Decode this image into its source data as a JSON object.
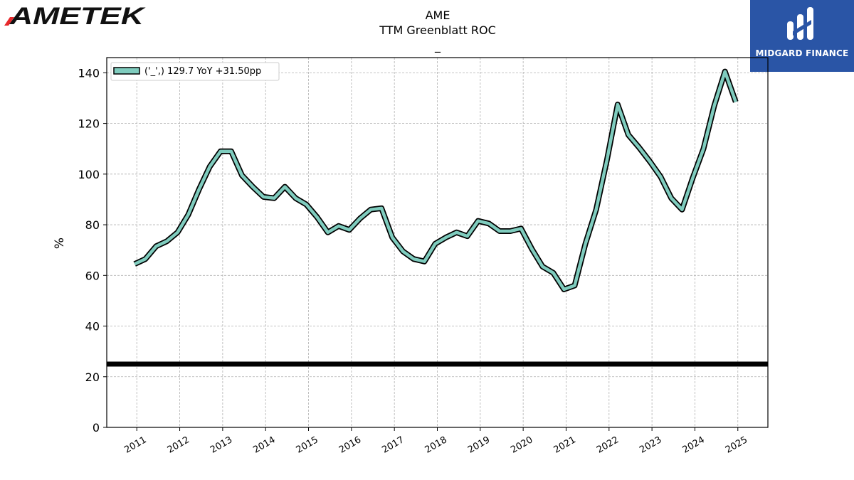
{
  "logos": {
    "left_brand": "AMETEK",
    "right_brand": "MIDGARD FINANCE"
  },
  "chart_data": {
    "type": "line",
    "title_lines": [
      "AME",
      "TTM Greenblatt ROC",
      "_"
    ],
    "ylabel": "%",
    "xlabel": "",
    "ylim": [
      0,
      146
    ],
    "xlim": [
      2010.3,
      2025.7
    ],
    "yticks": [
      0,
      20,
      40,
      60,
      80,
      100,
      120,
      140
    ],
    "xticks": [
      "2011",
      "2012",
      "2013",
      "2014",
      "2015",
      "2016",
      "2017",
      "2018",
      "2019",
      "2020",
      "2021",
      "2022",
      "2023",
      "2024",
      "2025"
    ],
    "grid": true,
    "legend": {
      "position": "top-left",
      "label": "('_',) 129.7 YoY +31.50pp"
    },
    "series_color": "#7fccbe",
    "reference_line": {
      "y": 25,
      "color": "#000000"
    },
    "series": [
      {
        "name": "('_',) 129.7 YoY +31.50pp",
        "x": [
          2010.95,
          2011.2,
          2011.45,
          2011.7,
          2011.95,
          2012.2,
          2012.45,
          2012.7,
          2012.95,
          2013.2,
          2013.45,
          2013.7,
          2013.95,
          2014.2,
          2014.45,
          2014.7,
          2014.95,
          2015.2,
          2015.45,
          2015.7,
          2015.95,
          2016.2,
          2016.45,
          2016.7,
          2016.95,
          2017.2,
          2017.45,
          2017.7,
          2017.95,
          2018.2,
          2018.45,
          2018.7,
          2018.95,
          2019.2,
          2019.45,
          2019.7,
          2019.95,
          2020.2,
          2020.45,
          2020.7,
          2020.95,
          2021.2,
          2021.45,
          2021.7,
          2021.95,
          2022.2,
          2022.45,
          2022.7,
          2022.95,
          2023.2,
          2023.45,
          2023.7,
          2023.95,
          2024.2,
          2024.45,
          2024.7,
          2024.95
        ],
        "y": [
          64.5,
          66.5,
          71.5,
          73.5,
          77,
          84,
          94,
          103,
          109,
          109,
          99.5,
          95,
          91,
          90.5,
          95,
          90.5,
          88,
          83,
          77,
          79.5,
          78,
          82.5,
          86,
          86.5,
          75,
          69.5,
          66.5,
          65.5,
          72.5,
          75,
          77,
          75.5,
          81.5,
          80.5,
          77.5,
          77.5,
          78.5,
          70.5,
          63.5,
          61,
          54.5,
          56,
          72.5,
          86,
          105.5,
          127.5,
          115.5,
          110.5,
          105,
          99,
          90.5,
          86,
          98.5,
          110,
          127,
          140.5,
          128.5
        ]
      }
    ]
  }
}
